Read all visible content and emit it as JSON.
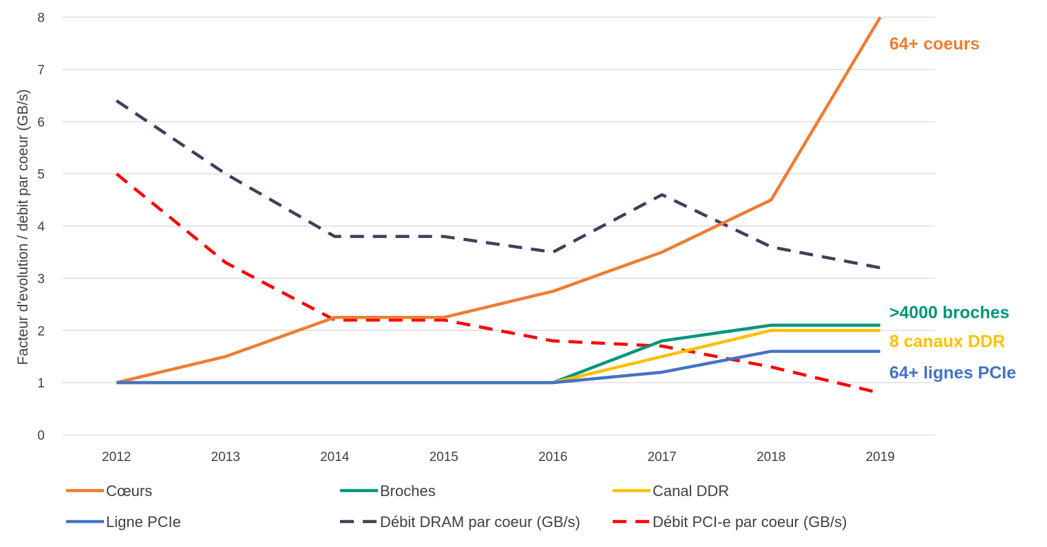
{
  "chart_data": {
    "type": "line",
    "title": "",
    "xlabel": "",
    "ylabel": "Facteur d'evolution / debit par coeur (GB/s)",
    "categories": [
      "2012",
      "2013",
      "2014",
      "2015",
      "2016",
      "2017",
      "2018",
      "2019"
    ],
    "ylim": [
      0,
      8
    ],
    "yticks": [
      "0",
      "1",
      "2",
      "3",
      "4",
      "5",
      "6",
      "7",
      "8"
    ],
    "grid": true,
    "legend_position": "bottom",
    "series": [
      {
        "name": "Cœurs",
        "color": "#ED7D31",
        "dash": false,
        "values": [
          1,
          1.5,
          2.25,
          2.25,
          2.75,
          3.5,
          4.5,
          8
        ]
      },
      {
        "name": "Broches",
        "color": "#00957A",
        "dash": false,
        "values": [
          1,
          1,
          1,
          1,
          1,
          1.8,
          2.1,
          2.1
        ]
      },
      {
        "name": "Canal DDR",
        "color": "#FFC000",
        "dash": false,
        "values": [
          1,
          1,
          1,
          1,
          1,
          1.5,
          2,
          2
        ]
      },
      {
        "name": "Ligne PCIe",
        "color": "#4472C4",
        "dash": false,
        "values": [
          1,
          1,
          1,
          1,
          1,
          1.2,
          1.6,
          1.6
        ]
      },
      {
        "name": "Débit DRAM par coeur (GB/s)",
        "color": "#4B3A5C",
        "dash": true,
        "values": [
          6.4,
          5,
          3.8,
          3.8,
          3.5,
          4.6,
          3.6,
          3.2
        ]
      },
      {
        "name": "Débit PCI-e par coeur (GB/s)",
        "color": "#FF0000",
        "dash": true,
        "values": [
          5,
          3.3,
          2.2,
          2.2,
          1.8,
          1.7,
          1.3,
          0.8
        ]
      }
    ],
    "annotations": [
      {
        "text": "64+ coeurs",
        "color": "#ED7D31",
        "y": 7.5
      },
      {
        "text": ">4000 broches",
        "color": "#00957A",
        "y": 2.35
      },
      {
        "text": "8 canaux DDR",
        "color": "#FFC000",
        "y": 1.8
      },
      {
        "text": "64+ lignes PCIe",
        "color": "#4472C4",
        "y": 1.2
      }
    ]
  }
}
